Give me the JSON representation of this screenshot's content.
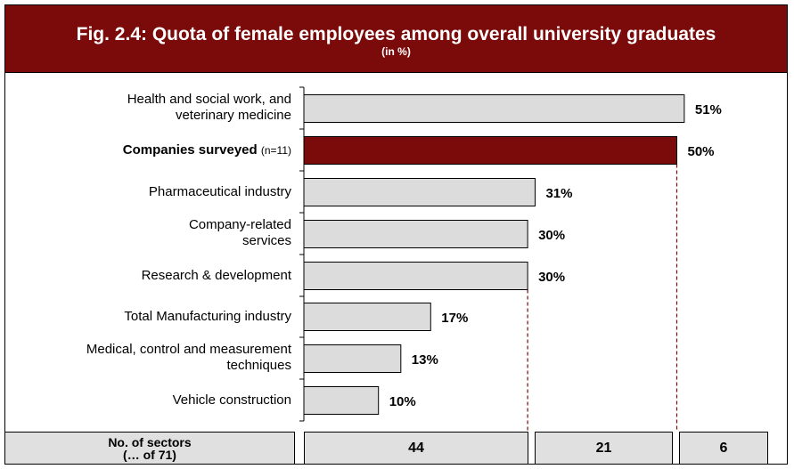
{
  "title": "Fig. 2.4: Quota of female employees among overall university graduates",
  "subtitle": "(in %)",
  "colors": {
    "title_bg": "#7b0a0a",
    "highlight_bar": "#7b0a0a",
    "bar": "#dcdcdc",
    "dashed_line": "#7b0a0a"
  },
  "chart_data": {
    "type": "bar",
    "orientation": "horizontal",
    "title": "Fig. 2.4: Quota of female employees among overall university graduates",
    "subtitle": "(in %)",
    "categories": [
      "Health and social work, and veterinary medicine",
      "Companies surveyed (n=11)",
      "Pharmaceutical industry",
      "Company-related services",
      "Research & development",
      "Total Manufacturing industry",
      "Medical, control and measurement techniques",
      "Vehicle construction"
    ],
    "values": [
      51,
      50,
      31,
      30,
      30,
      17,
      13,
      10
    ],
    "value_labels": [
      "51%",
      "50%",
      "31%",
      "30%",
      "30%",
      "17%",
      "13%",
      "10%"
    ],
    "highlighted_category": "Companies surveyed (n=11)",
    "xlim": [
      0,
      51
    ]
  },
  "labels": {
    "l0a": "Health and social work, and",
    "l0b": "veterinary medicine",
    "l1_main": "Companies surveyed",
    "l1_paren": "(n=11)",
    "l2": "Pharmaceutical industry",
    "l3a": "Company-related",
    "l3b": "services",
    "l4": "Research & development",
    "l5": "Total Manufacturing industry",
    "l6a": "Medical, control and measurement",
    "l6b": "techniques",
    "l7": "Vehicle construction"
  },
  "sector_counts": {
    "label_line1": "No. of sectors",
    "label_line2": "(… of 71)",
    "counts": [
      "44",
      "21",
      "6"
    ]
  }
}
